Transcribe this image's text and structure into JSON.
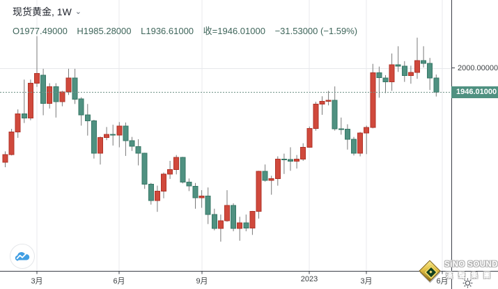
{
  "header": {
    "symbol": "现货黄金",
    "separator": ", ",
    "interval": "1W",
    "chevron_down_glyph": "⌄",
    "ohlc_row": {
      "open": "O1977.49000",
      "high": "H1985.28000",
      "low": "L1936.61000",
      "close": "收=1946.01000",
      "change": "−31.53000 (−1.59%)"
    }
  },
  "price_axis": {
    "gridline_label": "2000.00000",
    "gridline_price": 2000,
    "last_price_label": "1946.01000",
    "last_price": 1946.01,
    "tag_color": "#4f9181"
  },
  "time_axis": {
    "labels": [
      {
        "text": "3月",
        "week_index": 5
      },
      {
        "text": "6月",
        "week_index": 18
      },
      {
        "text": "9月",
        "week_index": 31
      },
      {
        "text": "2023",
        "week_index": 48
      },
      {
        "text": "3月",
        "week_index": 57
      },
      {
        "text": "6月",
        "week_index": 69
      }
    ]
  },
  "watermark": {
    "line1": "SiNO SOUND",
    "line2": "漢聲集團",
    "logo": "gold-diamond-logo"
  },
  "buttons": {
    "logo_icon": "area-chart-icon",
    "settings_icon": "gear-icon"
  },
  "chart_data": {
    "type": "candlestick",
    "title": "现货黄金 1W (spot gold, weekly)",
    "interval": "1W",
    "color_convention": "red = up, green = down",
    "up_color": "#d0493c",
    "up_border": "#b03328",
    "down_color": "#4f9181",
    "down_border": "#377766",
    "wick_color": "#787878",
    "visible_price_range": [
      1550,
      2070
    ],
    "first_week_estimate": "2022-01-31",
    "columns": [
      "open",
      "high",
      "low",
      "close"
    ],
    "candles": [
      [
        1791,
        1815,
        1780,
        1808
      ],
      [
        1808,
        1865,
        1806,
        1858
      ],
      [
        1858,
        1908,
        1845,
        1898
      ],
      [
        1898,
        1974,
        1878,
        1889
      ],
      [
        1889,
        1974,
        1884,
        1966
      ],
      [
        1966,
        2070,
        1958,
        1988
      ],
      [
        1984,
        1998,
        1895,
        1921
      ],
      [
        1921,
        1966,
        1910,
        1958
      ],
      [
        1958,
        1966,
        1890,
        1925
      ],
      [
        1925,
        1949,
        1915,
        1947
      ],
      [
        1947,
        1998,
        1940,
        1978
      ],
      [
        1978,
        1998,
        1920,
        1931
      ],
      [
        1931,
        1935,
        1872,
        1896
      ],
      [
        1896,
        1920,
        1850,
        1883
      ],
      [
        1883,
        1885,
        1799,
        1811
      ],
      [
        1811,
        1848,
        1786,
        1846
      ],
      [
        1846,
        1869,
        1840,
        1853
      ],
      [
        1853,
        1874,
        1828,
        1851
      ],
      [
        1851,
        1880,
        1824,
        1871
      ],
      [
        1871,
        1879,
        1805,
        1839
      ],
      [
        1839,
        1847,
        1816,
        1826
      ],
      [
        1826,
        1842,
        1784,
        1811
      ],
      [
        1811,
        1812,
        1732,
        1742
      ],
      [
        1742,
        1745,
        1697,
        1706
      ],
      [
        1706,
        1739,
        1681,
        1727
      ],
      [
        1727,
        1768,
        1711,
        1765
      ],
      [
        1765,
        1794,
        1754,
        1775
      ],
      [
        1775,
        1807,
        1764,
        1802
      ],
      [
        1802,
        1803,
        1744,
        1747
      ],
      [
        1747,
        1755,
        1727,
        1738
      ],
      [
        1738,
        1745,
        1688,
        1712
      ],
      [
        1712,
        1729,
        1690,
        1716
      ],
      [
        1716,
        1735,
        1654,
        1675
      ],
      [
        1675,
        1688,
        1640,
        1644
      ],
      [
        1644,
        1675,
        1615,
        1661
      ],
      [
        1661,
        1729,
        1659,
        1695
      ],
      [
        1695,
        1700,
        1638,
        1644
      ],
      [
        1644,
        1670,
        1617,
        1657
      ],
      [
        1657,
        1675,
        1638,
        1645
      ],
      [
        1645,
        1683,
        1630,
        1682
      ],
      [
        1682,
        1772,
        1666,
        1771
      ],
      [
        1771,
        1786,
        1748,
        1751
      ],
      [
        1751,
        1761,
        1719,
        1755
      ],
      [
        1755,
        1804,
        1739,
        1798
      ],
      [
        1798,
        1810,
        1765,
        1797
      ],
      [
        1797,
        1824,
        1772,
        1793
      ],
      [
        1793,
        1807,
        1777,
        1798
      ],
      [
        1798,
        1833,
        1794,
        1824
      ],
      [
        1824,
        1870,
        1823,
        1866
      ],
      [
        1866,
        1925,
        1861,
        1920
      ],
      [
        1920,
        1937,
        1896,
        1926
      ],
      [
        1926,
        1949,
        1917,
        1928
      ],
      [
        1928,
        1959,
        1861,
        1865
      ],
      [
        1865,
        1890,
        1852,
        1864
      ],
      [
        1864,
        1875,
        1819,
        1842
      ],
      [
        1842,
        1847,
        1806,
        1811
      ],
      [
        1811,
        1858,
        1804,
        1856
      ],
      [
        1856,
        1872,
        1809,
        1868
      ],
      [
        1868,
        2009,
        1866,
        1989
      ],
      [
        1989,
        2003,
        1934,
        1978
      ],
      [
        1978,
        1984,
        1944,
        1969
      ],
      [
        1969,
        2032,
        1949,
        2007
      ],
      [
        2007,
        2048,
        1991,
        2004
      ],
      [
        2004,
        2015,
        1969,
        1983
      ],
      [
        1983,
        2005,
        1965,
        1990
      ],
      [
        1990,
        2067,
        1976,
        2016
      ],
      [
        2016,
        2048,
        2001,
        2010
      ],
      [
        2010,
        2022,
        1951,
        1977.54
      ],
      [
        1977.49,
        1985.28,
        1936.61,
        1946.01
      ]
    ]
  }
}
